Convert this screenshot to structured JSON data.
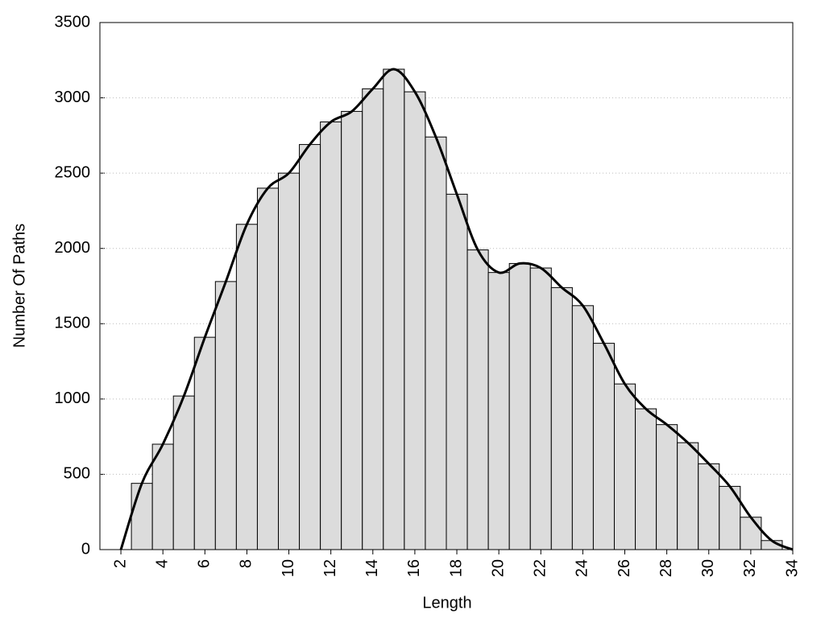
{
  "chart_data": {
    "type": "histogram",
    "x_label": "Length",
    "y_label": "Number Of Paths",
    "bins": [
      2.5,
      3.5,
      4.5,
      5.5,
      6.5,
      7.5,
      8.5,
      9.5,
      10.5,
      11.5,
      12.5,
      13.5,
      14.5,
      15.5,
      16.5,
      17.5,
      18.5,
      19.5,
      20.5,
      21.5,
      22.5,
      23.5,
      24.5,
      25.5,
      26.5,
      27.5,
      28.5,
      29.5,
      30.5,
      31.5,
      32.5,
      33.5
    ],
    "values": [
      440,
      700,
      1020,
      1410,
      1780,
      2160,
      2400,
      2500,
      2690,
      2840,
      2910,
      3060,
      3190,
      3040,
      2740,
      2360,
      1990,
      1840,
      1900,
      1870,
      1740,
      1620,
      1370,
      1100,
      935,
      830,
      710,
      570,
      420,
      215,
      60
    ],
    "color": "#dcdcdc",
    "curve": {
      "color": "#000000",
      "x": [
        2,
        3,
        4,
        5,
        6,
        7,
        8,
        9,
        10,
        11,
        12,
        13,
        14,
        15,
        16,
        17,
        18,
        19,
        20,
        21,
        22,
        23,
        24,
        25,
        26,
        27,
        28,
        29,
        30,
        31,
        32,
        33,
        34
      ],
      "values": [
        0,
        440,
        700,
        1020,
        1410,
        1780,
        2160,
        2400,
        2500,
        2690,
        2840,
        2910,
        3060,
        3190,
        3040,
        2740,
        2360,
        1990,
        1840,
        1900,
        1870,
        1740,
        1620,
        1370,
        1100,
        935,
        830,
        710,
        570,
        420,
        215,
        60,
        0
      ]
    },
    "xlim": [
      1,
      34
    ],
    "xticks": [
      2,
      4,
      6,
      8,
      10,
      12,
      14,
      16,
      18,
      20,
      22,
      24,
      26,
      28,
      30,
      32,
      34
    ],
    "ylim": [
      0,
      3500
    ],
    "yticks": [
      0,
      500,
      1000,
      1500,
      2000,
      2500,
      3000,
      3500
    ],
    "grid": true
  }
}
